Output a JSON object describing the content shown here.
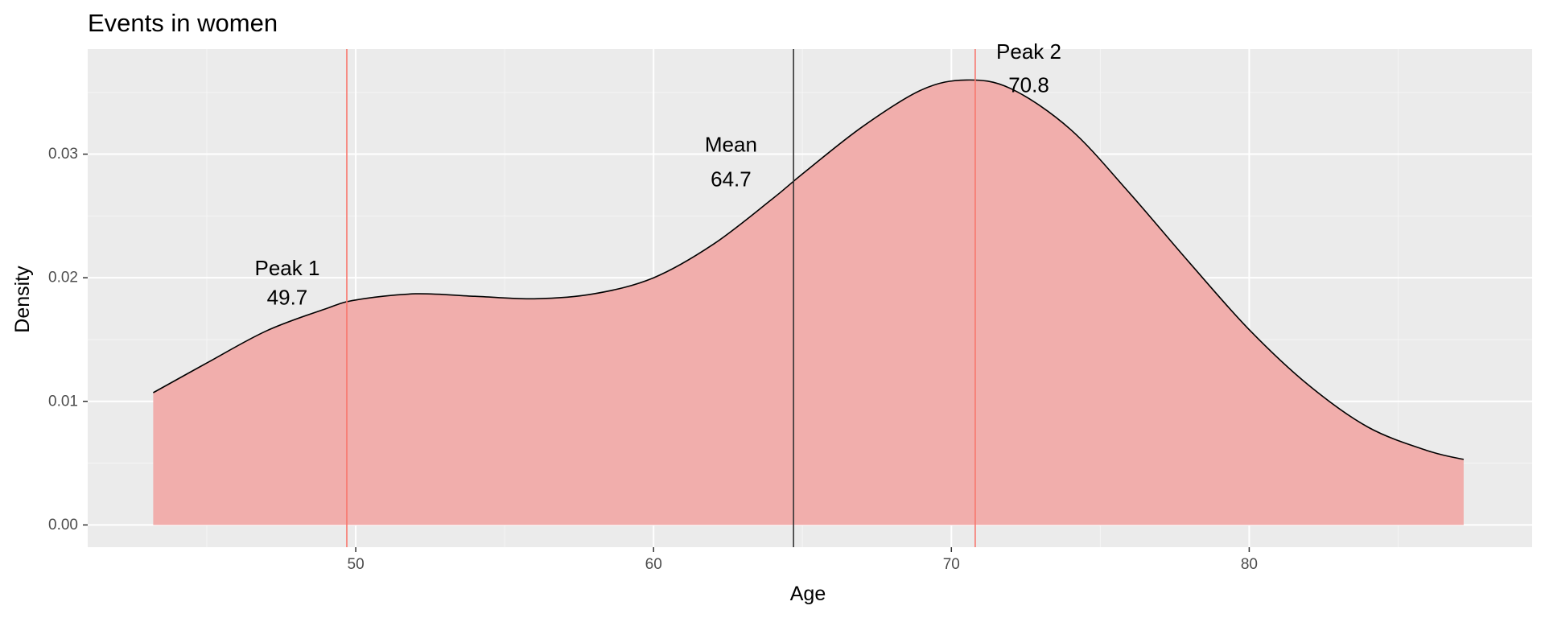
{
  "chart_data": {
    "type": "area",
    "title": "Events in women",
    "xlabel": "Age",
    "ylabel": "Density",
    "xlim": [
      41,
      89.5
    ],
    "ylim": [
      -0.0018,
      0.0385
    ],
    "x_ticks": [
      50,
      60,
      70,
      80
    ],
    "x_tick_labels": [
      "50",
      "60",
      "70",
      "80"
    ],
    "y_ticks": [
      0,
      0.01,
      0.02,
      0.03
    ],
    "y_tick_labels": [
      "0.00",
      "0.01",
      "0.02",
      "0.03"
    ],
    "grid": true,
    "series": [
      {
        "x": [
          43.2,
          45,
          47,
          49,
          50,
          52,
          54,
          56,
          58,
          60,
          62,
          64,
          65,
          67,
          69,
          70.5,
          72,
          74,
          76,
          78,
          80,
          82,
          84,
          86,
          87.2
        ],
        "y": [
          0.0107,
          0.0131,
          0.0157,
          0.0175,
          0.0182,
          0.0187,
          0.0185,
          0.0183,
          0.0187,
          0.02,
          0.0227,
          0.0264,
          0.0284,
          0.0322,
          0.0352,
          0.036,
          0.0353,
          0.032,
          0.0268,
          0.0212,
          0.0158,
          0.0113,
          0.0079,
          0.006,
          0.0053
        ],
        "fill": "#f1aeac",
        "line": "#000000"
      }
    ],
    "vlines": [
      {
        "x": 49.7,
        "color": "#f8766d"
      },
      {
        "x": 64.7,
        "color": "#333333"
      },
      {
        "x": 70.8,
        "color": "#f8766d"
      }
    ],
    "annotations": [
      {
        "label": "Peak 1",
        "value": "49.7",
        "x": 47.7,
        "y_label": 0.0208,
        "y_value": 0.0184
      },
      {
        "label": "Mean",
        "value": "64.7",
        "x": 62.6,
        "y_label": 0.0308,
        "y_value": 0.028
      },
      {
        "label": "Peak 2",
        "value": "70.8",
        "x": 72.6,
        "y_label": 0.0383,
        "y_value": 0.0356
      }
    ],
    "colors": {
      "panel_background": "#ebebeb",
      "grid_major": "#ffffff",
      "grid_minor": "#f5f5f5",
      "tick": "#333333"
    }
  }
}
